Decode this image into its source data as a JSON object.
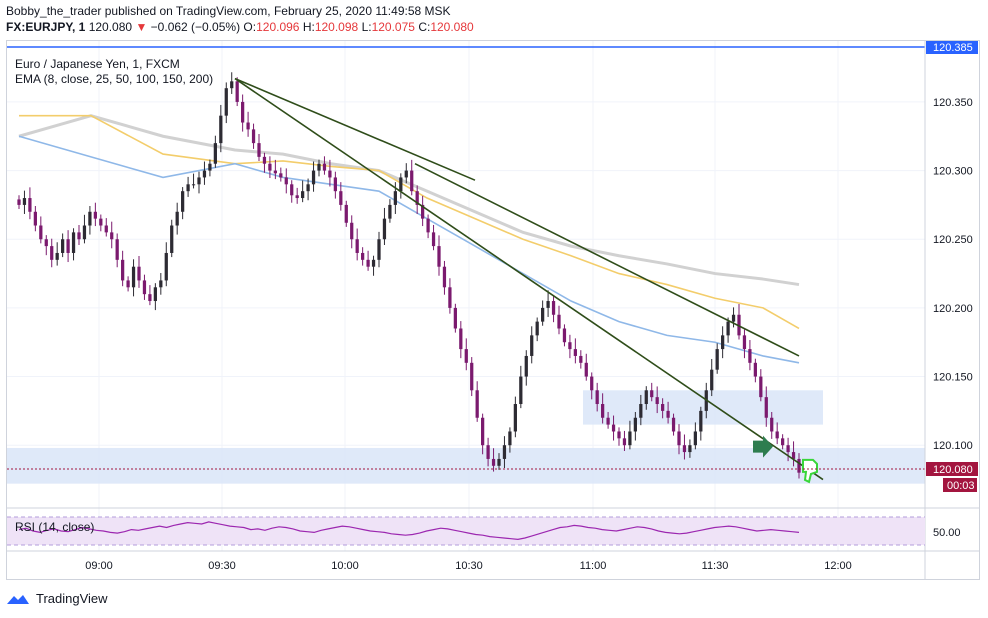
{
  "header": {
    "line1": "Bobby_the_trader published on TradingView.com, February 25, 2020 11:49:58 MSK",
    "symbol": "FX:EURJPY, 1",
    "last": "120.080",
    "change_arrow": "▼",
    "change": "−0.062 (−0.05%)",
    "o_label": "O:",
    "o": "120.096",
    "h_label": "H:",
    "h": "120.098",
    "l_label": "L:",
    "l": "120.075",
    "c_label": "C:",
    "c": "120.080"
  },
  "legend": {
    "title": "Euro / Japanese Yen, 1, FXCM",
    "ema": "EMA (8, close, 25, 50, 100, 150, 200)"
  },
  "price_axis": {
    "top_line_label": "120.385",
    "current_label": "120.080",
    "countdown_label": "00:03"
  },
  "rsi": {
    "title": "RSI (14, close)",
    "mid_label": "50.00"
  },
  "footer": {
    "brand": "TradingView"
  },
  "colors": {
    "up": "#2d2b33",
    "down": "#7b1a6e",
    "ema_gray": "#d1d1d1",
    "ema_yellow": "#f3cd6b",
    "ema_blue": "#8fb8e8",
    "trendline": "#2f4d1a",
    "zone": "#dbe7f8",
    "rsi_line": "#9c27b0",
    "rsi_band": "#efe3f7",
    "accent_blue": "#2962ff",
    "marker_dark_green": "#2e7d4f",
    "marker_bright_green": "#39d63a"
  },
  "chart_data": {
    "type": "candlestick",
    "title": "Euro / Japanese Yen, 1, FXCM",
    "xlabel": "",
    "ylabel": "",
    "x_ticks": [
      "09:00",
      "09:30",
      "10:00",
      "10:30",
      "11:00",
      "11:30",
      "12:00"
    ],
    "y_ticks": [
      120.1,
      120.15,
      120.2,
      120.25,
      120.3,
      120.35
    ],
    "ylim": [
      120.055,
      120.39
    ],
    "grid": true,
    "closes": [
      120.275,
      120.28,
      120.27,
      120.26,
      120.25,
      120.245,
      120.235,
      120.24,
      120.25,
      120.24,
      120.255,
      120.25,
      120.26,
      120.27,
      120.265,
      120.26,
      120.255,
      120.25,
      120.235,
      120.22,
      120.215,
      120.23,
      120.22,
      120.21,
      120.205,
      120.215,
      120.22,
      120.24,
      120.26,
      120.27,
      120.285,
      120.29,
      120.29,
      120.295,
      120.3,
      120.305,
      120.32,
      120.34,
      120.36,
      120.365,
      120.35,
      120.335,
      120.33,
      120.32,
      120.31,
      120.305,
      120.3,
      120.298,
      120.295,
      120.29,
      120.282,
      120.28,
      120.285,
      120.29,
      120.3,
      120.305,
      120.3,
      120.295,
      120.285,
      120.275,
      120.262,
      120.25,
      120.24,
      120.235,
      120.23,
      120.235,
      120.25,
      120.265,
      120.275,
      120.285,
      120.295,
      120.3,
      120.285,
      120.275,
      120.265,
      120.255,
      120.245,
      120.23,
      120.215,
      120.2,
      120.185,
      120.17,
      120.16,
      120.14,
      120.12,
      120.1,
      120.09,
      120.085,
      120.09,
      120.1,
      120.11,
      120.13,
      120.15,
      120.165,
      120.18,
      120.19,
      120.2,
      120.205,
      120.195,
      120.185,
      120.175,
      120.17,
      120.165,
      120.16,
      120.15,
      120.14,
      120.13,
      120.12,
      120.115,
      120.11,
      120.105,
      120.1,
      120.11,
      120.12,
      120.13,
      120.14,
      120.135,
      120.13,
      120.125,
      120.12,
      120.11,
      120.1,
      120.095,
      120.1,
      120.11,
      120.125,
      120.14,
      120.155,
      120.17,
      120.18,
      120.19,
      120.195,
      120.18,
      120.17,
      120.16,
      120.15,
      120.135,
      120.12,
      120.11,
      120.105,
      120.1,
      120.095,
      120.09,
      120.08
    ],
    "ema_gray_points": [
      [
        0,
        120.325
      ],
      [
        30,
        120.34
      ],
      [
        60,
        120.325
      ],
      [
        90,
        120.315
      ],
      [
        110,
        120.312
      ],
      [
        130,
        120.305
      ],
      [
        150,
        120.3
      ],
      [
        170,
        120.285
      ],
      [
        190,
        120.27
      ],
      [
        210,
        120.255
      ],
      [
        230,
        120.245
      ],
      [
        250,
        120.238
      ],
      [
        270,
        120.232
      ],
      [
        290,
        120.225
      ],
      [
        310,
        120.221
      ],
      [
        325,
        120.217
      ]
    ],
    "ema_yellow_points": [
      [
        0,
        120.34
      ],
      [
        30,
        120.34
      ],
      [
        60,
        120.312
      ],
      [
        90,
        120.305
      ],
      [
        110,
        120.307
      ],
      [
        130,
        120.303
      ],
      [
        150,
        120.3
      ],
      [
        170,
        120.28
      ],
      [
        190,
        120.265
      ],
      [
        210,
        120.25
      ],
      [
        230,
        120.238
      ],
      [
        250,
        120.225
      ],
      [
        270,
        120.217
      ],
      [
        290,
        120.207
      ],
      [
        310,
        120.2
      ],
      [
        325,
        120.185
      ]
    ],
    "ema_blue_points": [
      [
        0,
        120.325
      ],
      [
        30,
        120.31
      ],
      [
        60,
        120.295
      ],
      [
        90,
        120.305
      ],
      [
        110,
        120.295
      ],
      [
        130,
        120.29
      ],
      [
        150,
        120.285
      ],
      [
        170,
        120.265
      ],
      [
        190,
        120.245
      ],
      [
        210,
        120.225
      ],
      [
        230,
        120.205
      ],
      [
        250,
        120.19
      ],
      [
        270,
        120.18
      ],
      [
        290,
        120.175
      ],
      [
        310,
        120.165
      ],
      [
        325,
        120.16
      ]
    ],
    "trendlines": [
      {
        "from": [
          90,
          120.367
        ],
        "to": [
          190,
          120.293
        ]
      },
      {
        "from": [
          90,
          120.367
        ],
        "to": [
          335,
          120.075
        ]
      },
      {
        "from": [
          165,
          120.305
        ],
        "to": [
          325,
          120.165
        ]
      }
    ],
    "zones": [
      {
        "x_from": 235,
        "x_to": 335,
        "y_low": 120.115,
        "y_high": 120.14
      },
      {
        "x_from": 0,
        "x_to": 380,
        "y_low": 120.072,
        "y_high": 120.098
      }
    ],
    "rsi_values": [
      52,
      54,
      50,
      48,
      51,
      53,
      50,
      49,
      52,
      55,
      53,
      51,
      50,
      48,
      47,
      49,
      52,
      51,
      53,
      55,
      57,
      55,
      58,
      60,
      62,
      61,
      60,
      63,
      61,
      59,
      57,
      56,
      55,
      52,
      53,
      51,
      54,
      56,
      55,
      53,
      50,
      49,
      48,
      51,
      53,
      55,
      57,
      56,
      54,
      52,
      50,
      49,
      48,
      46,
      45,
      44,
      45,
      47,
      50,
      52,
      54,
      53,
      51,
      49,
      47,
      45,
      44,
      42,
      41,
      40,
      39,
      38,
      40,
      43,
      46,
      49,
      52,
      55,
      56,
      58,
      57,
      55,
      54,
      52,
      51,
      50,
      52,
      54,
      56,
      55,
      53,
      50,
      48,
      47,
      46,
      47,
      49,
      51,
      53,
      55,
      56,
      57,
      56,
      54,
      52,
      50,
      51,
      52,
      51,
      50,
      49,
      48
    ]
  }
}
